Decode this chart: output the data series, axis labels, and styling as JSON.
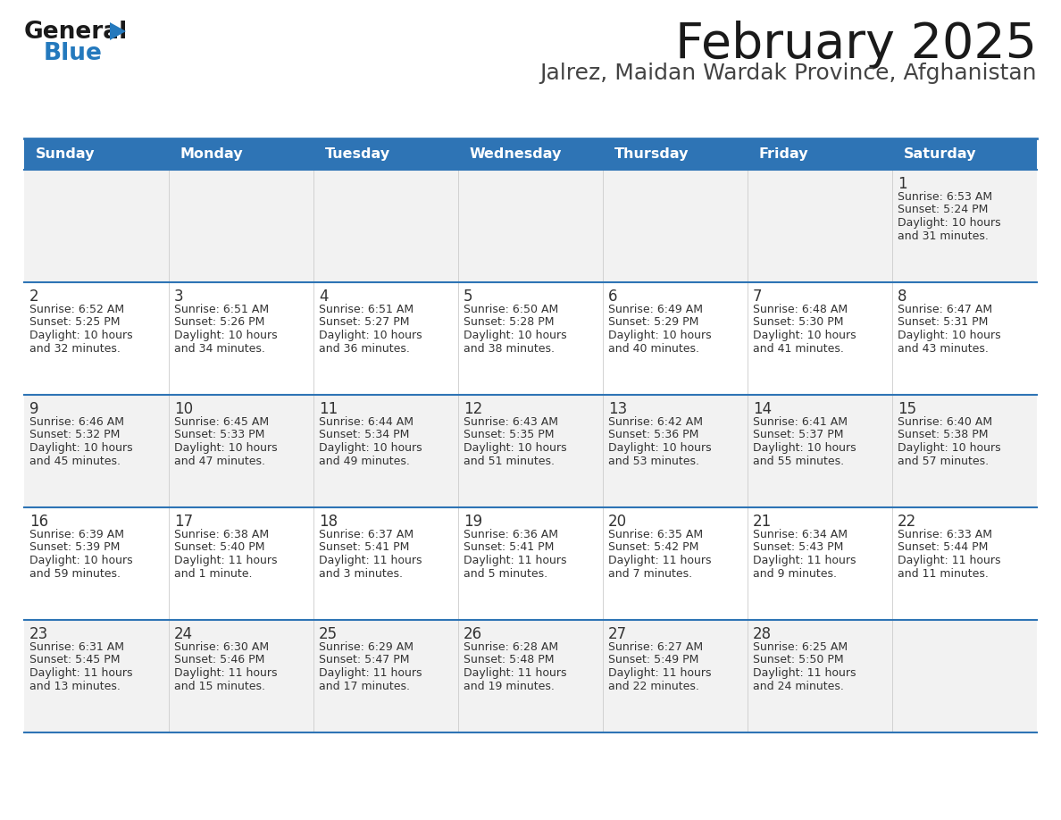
{
  "title": "February 2025",
  "subtitle": "Jalrez, Maidan Wardak Province, Afghanistan",
  "days_of_week": [
    "Sunday",
    "Monday",
    "Tuesday",
    "Wednesday",
    "Thursday",
    "Friday",
    "Saturday"
  ],
  "header_bg": "#2E74B5",
  "header_text": "#FFFFFF",
  "separator_color": "#2E74B5",
  "cell_border_color": "#CCCCCC",
  "text_color": "#333333",
  "bg_colors": [
    "#F2F2F2",
    "#FFFFFF",
    "#F2F2F2",
    "#FFFFFF",
    "#F2F2F2"
  ],
  "calendar_data": [
    {
      "day": 1,
      "col": 6,
      "row": 0,
      "sunrise": "6:53 AM",
      "sunset": "5:24 PM",
      "daylight_h": "10 hours",
      "daylight_m": "and 31 minutes."
    },
    {
      "day": 2,
      "col": 0,
      "row": 1,
      "sunrise": "6:52 AM",
      "sunset": "5:25 PM",
      "daylight_h": "10 hours",
      "daylight_m": "and 32 minutes."
    },
    {
      "day": 3,
      "col": 1,
      "row": 1,
      "sunrise": "6:51 AM",
      "sunset": "5:26 PM",
      "daylight_h": "10 hours",
      "daylight_m": "and 34 minutes."
    },
    {
      "day": 4,
      "col": 2,
      "row": 1,
      "sunrise": "6:51 AM",
      "sunset": "5:27 PM",
      "daylight_h": "10 hours",
      "daylight_m": "and 36 minutes."
    },
    {
      "day": 5,
      "col": 3,
      "row": 1,
      "sunrise": "6:50 AM",
      "sunset": "5:28 PM",
      "daylight_h": "10 hours",
      "daylight_m": "and 38 minutes."
    },
    {
      "day": 6,
      "col": 4,
      "row": 1,
      "sunrise": "6:49 AM",
      "sunset": "5:29 PM",
      "daylight_h": "10 hours",
      "daylight_m": "and 40 minutes."
    },
    {
      "day": 7,
      "col": 5,
      "row": 1,
      "sunrise": "6:48 AM",
      "sunset": "5:30 PM",
      "daylight_h": "10 hours",
      "daylight_m": "and 41 minutes."
    },
    {
      "day": 8,
      "col": 6,
      "row": 1,
      "sunrise": "6:47 AM",
      "sunset": "5:31 PM",
      "daylight_h": "10 hours",
      "daylight_m": "and 43 minutes."
    },
    {
      "day": 9,
      "col": 0,
      "row": 2,
      "sunrise": "6:46 AM",
      "sunset": "5:32 PM",
      "daylight_h": "10 hours",
      "daylight_m": "and 45 minutes."
    },
    {
      "day": 10,
      "col": 1,
      "row": 2,
      "sunrise": "6:45 AM",
      "sunset": "5:33 PM",
      "daylight_h": "10 hours",
      "daylight_m": "and 47 minutes."
    },
    {
      "day": 11,
      "col": 2,
      "row": 2,
      "sunrise": "6:44 AM",
      "sunset": "5:34 PM",
      "daylight_h": "10 hours",
      "daylight_m": "and 49 minutes."
    },
    {
      "day": 12,
      "col": 3,
      "row": 2,
      "sunrise": "6:43 AM",
      "sunset": "5:35 PM",
      "daylight_h": "10 hours",
      "daylight_m": "and 51 minutes."
    },
    {
      "day": 13,
      "col": 4,
      "row": 2,
      "sunrise": "6:42 AM",
      "sunset": "5:36 PM",
      "daylight_h": "10 hours",
      "daylight_m": "and 53 minutes."
    },
    {
      "day": 14,
      "col": 5,
      "row": 2,
      "sunrise": "6:41 AM",
      "sunset": "5:37 PM",
      "daylight_h": "10 hours",
      "daylight_m": "and 55 minutes."
    },
    {
      "day": 15,
      "col": 6,
      "row": 2,
      "sunrise": "6:40 AM",
      "sunset": "5:38 PM",
      "daylight_h": "10 hours",
      "daylight_m": "and 57 minutes."
    },
    {
      "day": 16,
      "col": 0,
      "row": 3,
      "sunrise": "6:39 AM",
      "sunset": "5:39 PM",
      "daylight_h": "10 hours",
      "daylight_m": "and 59 minutes."
    },
    {
      "day": 17,
      "col": 1,
      "row": 3,
      "sunrise": "6:38 AM",
      "sunset": "5:40 PM",
      "daylight_h": "11 hours",
      "daylight_m": "and 1 minute."
    },
    {
      "day": 18,
      "col": 2,
      "row": 3,
      "sunrise": "6:37 AM",
      "sunset": "5:41 PM",
      "daylight_h": "11 hours",
      "daylight_m": "and 3 minutes."
    },
    {
      "day": 19,
      "col": 3,
      "row": 3,
      "sunrise": "6:36 AM",
      "sunset": "5:41 PM",
      "daylight_h": "11 hours",
      "daylight_m": "and 5 minutes."
    },
    {
      "day": 20,
      "col": 4,
      "row": 3,
      "sunrise": "6:35 AM",
      "sunset": "5:42 PM",
      "daylight_h": "11 hours",
      "daylight_m": "and 7 minutes."
    },
    {
      "day": 21,
      "col": 5,
      "row": 3,
      "sunrise": "6:34 AM",
      "sunset": "5:43 PM",
      "daylight_h": "11 hours",
      "daylight_m": "and 9 minutes."
    },
    {
      "day": 22,
      "col": 6,
      "row": 3,
      "sunrise": "6:33 AM",
      "sunset": "5:44 PM",
      "daylight_h": "11 hours",
      "daylight_m": "and 11 minutes."
    },
    {
      "day": 23,
      "col": 0,
      "row": 4,
      "sunrise": "6:31 AM",
      "sunset": "5:45 PM",
      "daylight_h": "11 hours",
      "daylight_m": "and 13 minutes."
    },
    {
      "day": 24,
      "col": 1,
      "row": 4,
      "sunrise": "6:30 AM",
      "sunset": "5:46 PM",
      "daylight_h": "11 hours",
      "daylight_m": "and 15 minutes."
    },
    {
      "day": 25,
      "col": 2,
      "row": 4,
      "sunrise": "6:29 AM",
      "sunset": "5:47 PM",
      "daylight_h": "11 hours",
      "daylight_m": "and 17 minutes."
    },
    {
      "day": 26,
      "col": 3,
      "row": 4,
      "sunrise": "6:28 AM",
      "sunset": "5:48 PM",
      "daylight_h": "11 hours",
      "daylight_m": "and 19 minutes."
    },
    {
      "day": 27,
      "col": 4,
      "row": 4,
      "sunrise": "6:27 AM",
      "sunset": "5:49 PM",
      "daylight_h": "11 hours",
      "daylight_m": "and 22 minutes."
    },
    {
      "day": 28,
      "col": 5,
      "row": 4,
      "sunrise": "6:25 AM",
      "sunset": "5:50 PM",
      "daylight_h": "11 hours",
      "daylight_m": "and 24 minutes."
    }
  ],
  "logo_color_general": "#1A1A1A",
  "logo_color_blue": "#2479BD",
  "logo_triangle_color": "#2479BD"
}
